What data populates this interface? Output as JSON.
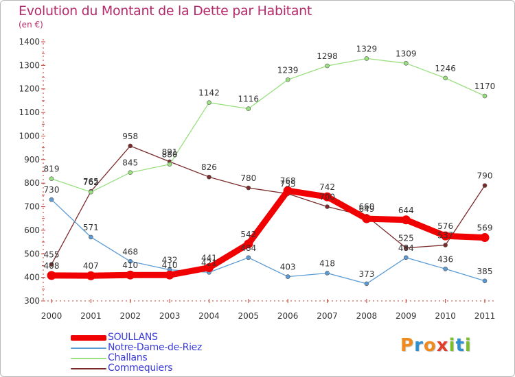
{
  "header": {
    "title": "Evolution du Montant de la Dette par Habitant",
    "subtitle": "(en €)"
  },
  "logo_text": "Proxiti",
  "chart_data": {
    "type": "line",
    "title": "Evolution du Montant de la Dette par Habitant",
    "ylabel": "(en €)",
    "xlabel": "",
    "x": [
      "2000",
      "2001",
      "2002",
      "2003",
      "2004",
      "2005",
      "2006",
      "2007",
      "2008",
      "2009",
      "2010",
      "2011"
    ],
    "yticks": [
      300,
      400,
      500,
      600,
      700,
      800,
      900,
      1000,
      1100,
      1200,
      1300,
      1400
    ],
    "ylim": [
      300,
      1400
    ],
    "grid": false,
    "legend": "bottom-left",
    "series": [
      {
        "name": "SOULLANS",
        "color": "#f00000",
        "values": [
          408,
          407,
          410,
          410,
          441,
          542,
          768,
          742,
          649,
          644,
          576,
          569
        ]
      },
      {
        "name": "Notre-Dame-de-Riez",
        "color": "#5b9bd5",
        "values": [
          730,
          571,
          468,
          432,
          421,
          484,
          403,
          418,
          373,
          484,
          436,
          385
        ]
      },
      {
        "name": "Challans",
        "color": "#99e07f",
        "values": [
          819,
          762,
          845,
          880,
          1142,
          1116,
          1239,
          1298,
          1329,
          1309,
          1246,
          1170
        ]
      },
      {
        "name": "Commequiers",
        "color": "#7b2a2a",
        "values": [
          455,
          765,
          958,
          891,
          826,
          780,
          755,
          700,
          660,
          525,
          537,
          790
        ]
      }
    ]
  }
}
